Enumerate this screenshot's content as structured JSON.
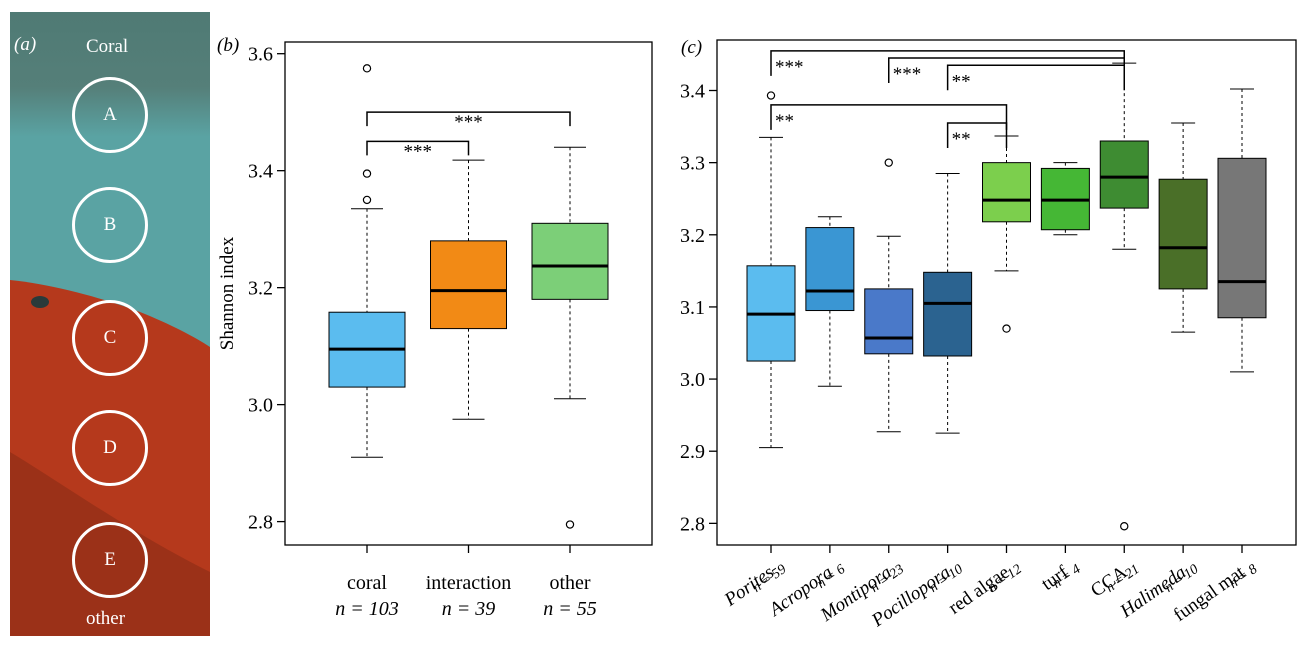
{
  "panel_a": {
    "tag": "(a)",
    "top_label": "Coral",
    "bottom_label": "other",
    "circles": [
      "A",
      "B",
      "C",
      "D",
      "E"
    ],
    "colors": {
      "coral_top": "#4f7a74",
      "blue_green": "#5aa3a3",
      "red": "#b5391c",
      "dark_red": "#7a2814"
    }
  },
  "chart_data": [
    {
      "type": "boxplot",
      "panel": "(b)",
      "ylabel": "Shannon index",
      "ylim": [
        2.76,
        3.62
      ],
      "yticks": [
        "2.8",
        "3.0",
        "3.2",
        "3.4",
        "3.6"
      ],
      "categories": [
        {
          "name": "coral",
          "n_label": "n = 103",
          "color": "#5bbcef",
          "min": 2.91,
          "q1": 3.03,
          "median": 3.095,
          "q3": 3.158,
          "max": 3.335,
          "outliers": [
            3.35,
            3.395,
            3.575
          ]
        },
        {
          "name": "interaction",
          "n_label": "n = 39",
          "color": "#f28a15",
          "min": 2.975,
          "q1": 3.13,
          "median": 3.195,
          "q3": 3.28,
          "max": 3.418,
          "outliers": []
        },
        {
          "name": "other",
          "n_label": "n = 55",
          "color": "#7ccf78",
          "min": 3.01,
          "q1": 3.18,
          "median": 3.237,
          "q3": 3.31,
          "max": 3.44,
          "outliers": [
            2.795
          ]
        }
      ],
      "significance": [
        {
          "from": 0,
          "to": 2,
          "label": "***",
          "level": 3.5
        },
        {
          "from": 0,
          "to": 1,
          "label": "***",
          "level": 3.45
        }
      ]
    },
    {
      "type": "boxplot",
      "panel": "(c)",
      "ylabel": "",
      "ylim": [
        2.77,
        3.47
      ],
      "yticks": [
        "2.8",
        "2.9",
        "3.0",
        "3.1",
        "3.2",
        "3.3",
        "3.4"
      ],
      "categories": [
        {
          "name": "Porites",
          "italic": true,
          "n_label": "n = 59",
          "color": "#5bbcef",
          "min": 2.905,
          "q1": 3.025,
          "median": 3.09,
          "q3": 3.157,
          "max": 3.335,
          "outliers": [
            3.393
          ]
        },
        {
          "name": "Acropora",
          "italic": true,
          "n_label": "n = 6",
          "color": "#3a96d3",
          "min": 2.99,
          "q1": 3.095,
          "median": 3.122,
          "q3": 3.21,
          "max": 3.225,
          "outliers": []
        },
        {
          "name": "Montipora",
          "italic": true,
          "n_label": "n = 23",
          "color": "#4a79c9",
          "min": 2.927,
          "q1": 3.035,
          "median": 3.057,
          "q3": 3.125,
          "max": 3.198,
          "outliers": [
            3.3
          ]
        },
        {
          "name": "Pocillopora",
          "italic": true,
          "n_label": "n = 10",
          "color": "#2b6390",
          "min": 2.925,
          "q1": 3.032,
          "median": 3.105,
          "q3": 3.148,
          "max": 3.285,
          "outliers": []
        },
        {
          "name": "red algae",
          "italic": false,
          "n_label": "n = 12",
          "color": "#7ccf4d",
          "min": 3.15,
          "q1": 3.218,
          "median": 3.248,
          "q3": 3.3,
          "max": 3.337,
          "outliers": [
            3.07
          ]
        },
        {
          "name": "turf",
          "italic": false,
          "n_label": "n = 4",
          "color": "#45b735",
          "min": 3.2,
          "q1": 3.207,
          "median": 3.248,
          "q3": 3.292,
          "max": 3.3,
          "outliers": []
        },
        {
          "name": "CCA",
          "italic": false,
          "n_label": "n = 21",
          "color": "#3e8c32",
          "min": 3.18,
          "q1": 3.237,
          "median": 3.28,
          "q3": 3.33,
          "max": 3.438,
          "outliers": [
            2.796
          ]
        },
        {
          "name": "Halimeda",
          "italic": true,
          "n_label": "n = 10",
          "color": "#4a6f28",
          "min": 3.065,
          "q1": 3.125,
          "median": 3.182,
          "q3": 3.277,
          "max": 3.355,
          "outliers": []
        },
        {
          "name": "fungal mat",
          "italic": false,
          "n_label": "n = 8",
          "color": "#777777",
          "min": 3.01,
          "q1": 3.085,
          "median": 3.135,
          "q3": 3.306,
          "max": 3.402,
          "outliers": []
        }
      ],
      "significance": [
        {
          "from": 0,
          "to": 6,
          "label": "***",
          "level": 3.455
        },
        {
          "from": 2,
          "to": 6,
          "label": "***",
          "level": 3.445
        },
        {
          "from": 3,
          "to": 6,
          "label": "**",
          "level": 3.435
        },
        {
          "from": 0,
          "to": 4,
          "label": "**",
          "level": 3.38
        },
        {
          "from": 3,
          "to": 4,
          "label": "**",
          "level": 3.355
        }
      ]
    }
  ]
}
